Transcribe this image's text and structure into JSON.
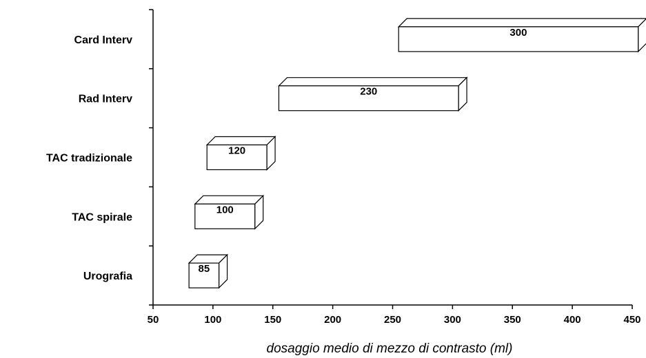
{
  "chart_data": {
    "type": "bar",
    "orientation": "horizontal",
    "style": "floating-3d",
    "categories": [
      "Urografia",
      "TAC spirale",
      "TAC tradizionale",
      "Rad Interv",
      "Card Interv"
    ],
    "ranges": [
      [
        80,
        105
      ],
      [
        85,
        135
      ],
      [
        95,
        145
      ],
      [
        155,
        305
      ],
      [
        255,
        455
      ]
    ],
    "values": [
      85,
      100,
      120,
      230,
      300
    ],
    "value_labels": [
      "85",
      "100",
      "120",
      "230",
      "300"
    ],
    "xlabel": "dosaggio medio di mezzo di contrasto (ml)",
    "ylabel": "",
    "title": "",
    "xlim": [
      50,
      450
    ],
    "xticks": [
      50,
      100,
      150,
      200,
      250,
      300,
      350,
      400,
      450
    ],
    "xtick_labels": [
      "50",
      "100",
      "150",
      "200",
      "250",
      "300",
      "350",
      "400",
      "450"
    ],
    "grid": false,
    "bar_fill": "#ffffff",
    "bar_stroke": "#000000"
  }
}
